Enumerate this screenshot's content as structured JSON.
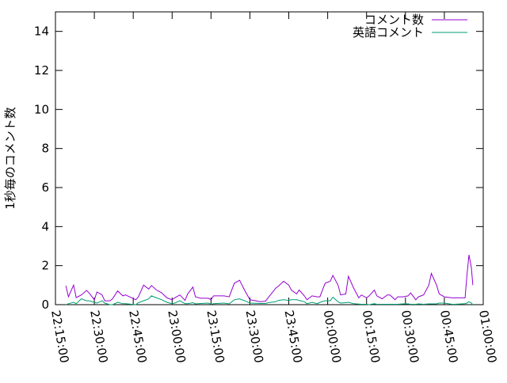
{
  "chart_data": {
    "type": "line",
    "title": "",
    "xlabel": "",
    "ylabel": "1秒毎のコメント数",
    "ylim": [
      0,
      15
    ],
    "xlim": [
      "22:15:00",
      "01:00:00"
    ],
    "yticks": [
      "0",
      "2",
      "4",
      "6",
      "8",
      "10",
      "12",
      "14"
    ],
    "xticks": [
      "22:15:00",
      "22:30:00",
      "22:45:00",
      "23:00:00",
      "23:15:00",
      "23:30:00",
      "23:45:00",
      "00:00:00",
      "00:15:00",
      "00:30:00",
      "00:45:00",
      "01:00:00"
    ],
    "grid": false,
    "legend": "top-right",
    "x": [
      "22:19:00",
      "22:20:00",
      "22:22:00",
      "22:23:00",
      "22:25:00",
      "22:27:00",
      "22:28:00",
      "22:30:00",
      "22:31:00",
      "22:33:00",
      "22:34:00",
      "22:36:00",
      "22:37:00",
      "22:39:00",
      "22:41:00",
      "22:42:00",
      "22:46:00",
      "22:47:00",
      "22:49:00",
      "22:51:00",
      "22:52:00",
      "22:54:00",
      "22:56:00",
      "22:58:00",
      "23:00:00",
      "23:01:00",
      "23:03:00",
      "23:05:00",
      "23:06:00",
      "23:08:00",
      "23:09:00",
      "23:11:00",
      "23:14:00",
      "23:15:00",
      "23:16:00",
      "23:20:00",
      "23:22:00",
      "23:24:00",
      "23:26:00",
      "23:28:00",
      "23:30:00",
      "23:34:00",
      "23:36:00",
      "23:37:00",
      "23:40:00",
      "23:41:00",
      "23:43:00",
      "23:45:00",
      "23:46:00",
      "23:48:00",
      "23:49:00",
      "23:51:00",
      "23:52:00",
      "23:54:00",
      "23:56:00",
      "23:57:00",
      "23:59:00",
      "00:01:00",
      "00:02:00",
      "00:04:00",
      "00:05:00",
      "00:07:00",
      "00:08:00",
      "00:10:00",
      "00:12:00",
      "00:13:00",
      "00:15:00",
      "00:16:00",
      "00:18:00",
      "00:19:00",
      "00:21:00",
      "00:23:00",
      "00:24:00",
      "00:26:00",
      "00:27:00",
      "00:29:00",
      "00:31:00",
      "00:32:00",
      "00:34:00",
      "00:35:00",
      "00:37:00",
      "00:39:00",
      "00:40:00",
      "00:42:00",
      "00:43:00",
      "00:45:00",
      "00:48:00",
      "00:49:00",
      "00:53:00",
      "00:53:40",
      "00:54:30",
      "00:55:25",
      "00:56:00"
    ],
    "series": [
      {
        "name": "コメント数",
        "color": "#9400d3",
        "values": [
          0.97,
          0.4,
          1.0,
          0.36,
          0.5,
          0.73,
          0.6,
          0.25,
          0.65,
          0.5,
          0.2,
          0.2,
          0.3,
          0.7,
          0.45,
          0.5,
          0.25,
          0.4,
          1.0,
          0.8,
          0.98,
          0.75,
          0.6,
          0.35,
          0.25,
          0.35,
          0.5,
          0.22,
          0.55,
          0.9,
          0.4,
          0.33,
          0.33,
          0.25,
          0.45,
          0.45,
          0.4,
          1.1,
          1.25,
          0.73,
          0.25,
          0.15,
          0.18,
          0.35,
          0.85,
          0.95,
          1.2,
          1.0,
          0.75,
          0.55,
          0.75,
          0.45,
          0.25,
          0.45,
          0.4,
          0.4,
          1.1,
          1.2,
          1.5,
          1.0,
          0.5,
          0.55,
          1.45,
          0.85,
          0.35,
          0.5,
          0.35,
          0.45,
          0.75,
          0.45,
          0.3,
          0.5,
          0.5,
          0.25,
          0.4,
          0.4,
          0.45,
          0.6,
          0.25,
          0.4,
          0.5,
          1.0,
          1.6,
          1.0,
          0.55,
          0.4,
          0.35,
          0.35,
          0.35,
          1.45,
          2.55,
          1.9,
          1.0
        ]
      },
      {
        "name": "英語コメント",
        "color": "#009e73",
        "values": [
          0,
          0.05,
          0.12,
          0.05,
          0.3,
          0.2,
          0.2,
          0.12,
          0.08,
          0.2,
          0.08,
          0,
          0,
          0.12,
          0.05,
          0.05,
          0,
          0.1,
          0.2,
          0.3,
          0.45,
          0.35,
          0.25,
          0.12,
          0.05,
          0.08,
          0.2,
          0.05,
          0.05,
          0.1,
          0.04,
          0.06,
          0.08,
          0.02,
          0.05,
          0.08,
          0.04,
          0.25,
          0.3,
          0.2,
          0.08,
          0.06,
          0.06,
          0.1,
          0.15,
          0.22,
          0.25,
          0.22,
          0.25,
          0.25,
          0.22,
          0.15,
          0.05,
          0.12,
          0.05,
          0.12,
          0.2,
          0.2,
          0.38,
          0.15,
          0.08,
          0.1,
          0.12,
          0.05,
          0.03,
          0.02,
          0.02,
          0,
          0.05,
          0.02,
          0.02,
          0.02,
          0.02,
          0.02,
          0.02,
          0.04,
          0.04,
          0.02,
          0.02,
          0.04,
          0.02,
          0.04,
          0.04,
          0.04,
          0.08,
          0.08,
          0.02,
          0.02,
          0.05,
          0.08,
          0.15,
          0.08,
          0
        ]
      }
    ]
  }
}
